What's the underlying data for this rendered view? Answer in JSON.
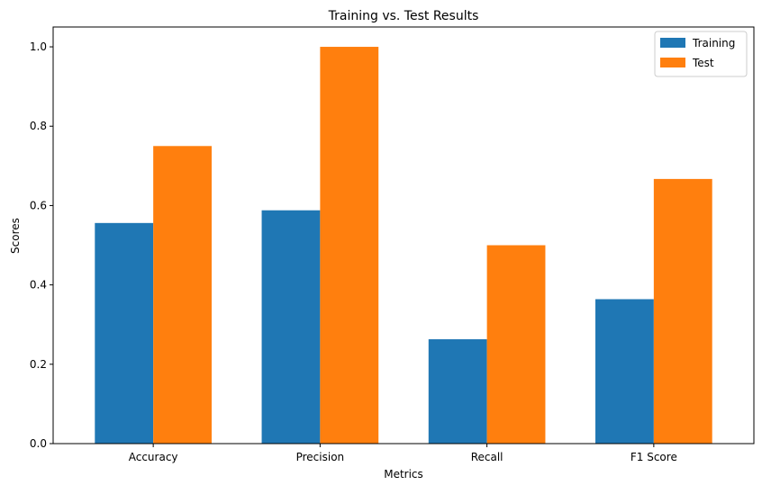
{
  "chart_data": {
    "type": "bar",
    "title": "Training vs. Test Results",
    "xlabel": "Metrics",
    "ylabel": "Scores",
    "categories": [
      "Accuracy",
      "Precision",
      "Recall",
      "F1 Score"
    ],
    "series": [
      {
        "name": "Training",
        "values": [
          0.556,
          0.588,
          0.263,
          0.364
        ],
        "color": "#1f77b4"
      },
      {
        "name": "Test",
        "values": [
          0.75,
          1.0,
          0.5,
          0.667
        ],
        "color": "#ff7f0e"
      }
    ],
    "ylim": [
      0,
      1.05
    ],
    "yticks": [
      "0.0",
      "0.2",
      "0.4",
      "0.6",
      "0.8",
      "1.0"
    ],
    "grid": false,
    "legend_position": "top-right"
  }
}
